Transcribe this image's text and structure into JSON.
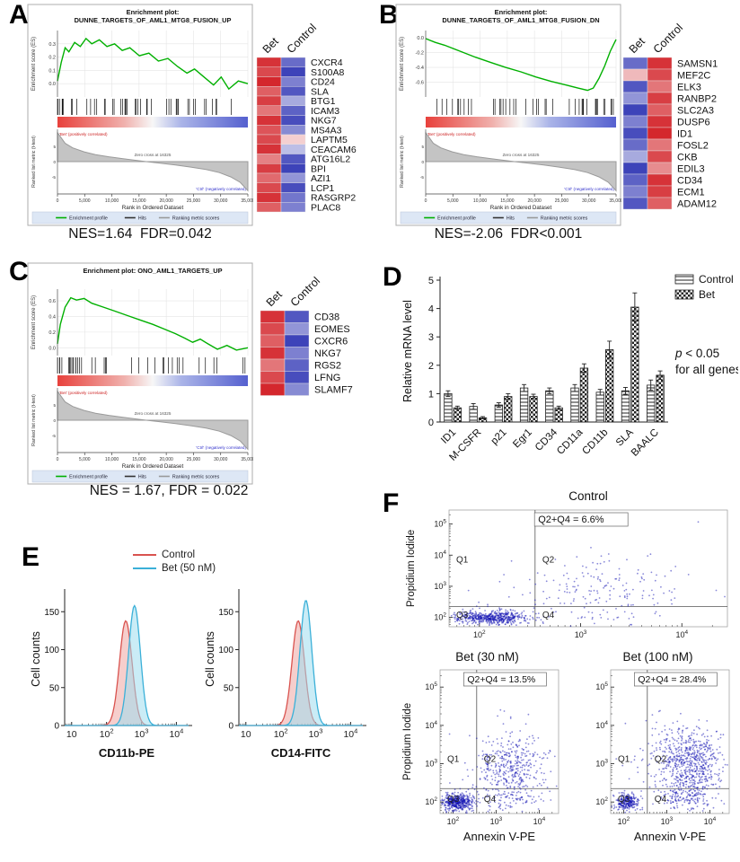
{
  "panels": {
    "A": "A",
    "B": "B",
    "C": "C",
    "D": "D",
    "E": "E",
    "F": "F"
  },
  "stats": {
    "A": "NES=1.64  FDR=0.042",
    "B": "NES=-2.06  FDR<0.001",
    "C": "NES = 1.67, FDR = 0.022"
  },
  "gsea_common": {
    "legend": [
      "Enrichment profile",
      "Hits",
      "Ranking metric scores"
    ],
    "legend_colors": [
      "#00b000",
      "#333333",
      "#999999"
    ],
    "xlabel": "Rank in Ordered Dataset",
    "ylabel_es": "Enrichment score (ES)",
    "ylabel_rank": "Ranked list metric (t-test)",
    "zero_cross": "Zero cross at 16325",
    "pos_label": "'Bet' (positively correlated)",
    "neg_label": "'Ctrl' (negatively correlated)",
    "x_ticks": [
      "0",
      "5,000",
      "10,000",
      "15,000",
      "20,000",
      "25,000",
      "30,000",
      "35,000"
    ],
    "rank_ticks": [
      [
        0.5,
        "5"
      ],
      [
        0,
        "0"
      ],
      [
        -0.5,
        "-5"
      ]
    ],
    "rank_curve": [
      [
        0,
        0.95
      ],
      [
        0.04,
        0.6
      ],
      [
        0.08,
        0.45
      ],
      [
        0.14,
        0.32
      ],
      [
        0.2,
        0.23
      ],
      [
        0.27,
        0.16
      ],
      [
        0.34,
        0.1
      ],
      [
        0.4,
        0.05
      ],
      [
        0.466,
        0
      ],
      [
        0.54,
        -0.05
      ],
      [
        0.62,
        -0.11
      ],
      [
        0.7,
        -0.18
      ],
      [
        0.78,
        -0.26
      ],
      [
        0.85,
        -0.36
      ],
      [
        0.91,
        -0.5
      ],
      [
        0.96,
        -0.68
      ],
      [
        1,
        -0.95
      ]
    ]
  },
  "chart_data": [
    {
      "id": "gsea_A",
      "type": "line",
      "subtype": "gsea",
      "title_lines": [
        "Enrichment plot:",
        "DUNNE_TARGETS_OF_AML1_MTG8_FUSION_UP"
      ],
      "es_ticks": [
        "0.3",
        "0.2",
        "0.1",
        "0.0"
      ],
      "es_range": [
        -0.1,
        0.4
      ],
      "curve": [
        [
          0,
          0.02
        ],
        [
          0.02,
          0.16
        ],
        [
          0.04,
          0.27
        ],
        [
          0.06,
          0.24
        ],
        [
          0.09,
          0.31
        ],
        [
          0.12,
          0.28
        ],
        [
          0.15,
          0.34
        ],
        [
          0.18,
          0.3
        ],
        [
          0.22,
          0.33
        ],
        [
          0.26,
          0.28
        ],
        [
          0.3,
          0.3
        ],
        [
          0.34,
          0.25
        ],
        [
          0.38,
          0.27
        ],
        [
          0.43,
          0.21
        ],
        [
          0.48,
          0.23
        ],
        [
          0.53,
          0.17
        ],
        [
          0.58,
          0.19
        ],
        [
          0.63,
          0.13
        ],
        [
          0.68,
          0.08
        ],
        [
          0.72,
          0.11
        ],
        [
          0.77,
          0.05
        ],
        [
          0.82,
          -0.01
        ],
        [
          0.86,
          0.05
        ],
        [
          0.9,
          -0.04
        ],
        [
          0.95,
          0.02
        ],
        [
          1,
          0
        ]
      ],
      "hits": {
        "seed": 3,
        "n": 48,
        "bias": 1.4,
        "side": "left"
      }
    },
    {
      "id": "hm_A",
      "type": "heatmap",
      "cols": [
        "Bet",
        "Control"
      ],
      "genes": [
        "CXCR4",
        "S100A8",
        "CD24",
        "SLA",
        "BTG1",
        "ICAM3",
        "NKG7",
        "MS4A3",
        "LAPTM5",
        "CEACAM6",
        "ATG16L2",
        "BPI",
        "AZI1",
        "LCP1",
        "RASGRP2",
        "PLAC8"
      ],
      "values": [
        [
          0.9,
          -0.7
        ],
        [
          0.8,
          -0.9
        ],
        [
          0.95,
          -0.6
        ],
        [
          0.7,
          -0.8
        ],
        [
          0.85,
          -0.4
        ],
        [
          0.6,
          -0.75
        ],
        [
          0.9,
          -0.85
        ],
        [
          0.75,
          -0.55
        ],
        [
          0.8,
          0.2
        ],
        [
          0.9,
          -0.3
        ],
        [
          0.55,
          -0.8
        ],
        [
          0.85,
          -0.9
        ],
        [
          0.65,
          -0.5
        ],
        [
          0.8,
          -0.85
        ],
        [
          0.9,
          -0.65
        ],
        [
          0.7,
          -0.6
        ]
      ]
    },
    {
      "id": "gsea_B",
      "type": "line",
      "subtype": "gsea",
      "title_lines": [
        "Enrichment plot:",
        "DUNNE_TARGETS_OF_AML1_MTG8_FUSION_DN"
      ],
      "es_ticks": [
        "0.0",
        "-0.2",
        "-0.4",
        "-0.6"
      ],
      "es_range": [
        -0.8,
        0.1
      ],
      "curve": [
        [
          0,
          -0.01
        ],
        [
          0.05,
          -0.06
        ],
        [
          0.1,
          -0.1
        ],
        [
          0.18,
          -0.18
        ],
        [
          0.26,
          -0.26
        ],
        [
          0.34,
          -0.33
        ],
        [
          0.42,
          -0.4
        ],
        [
          0.5,
          -0.46
        ],
        [
          0.58,
          -0.53
        ],
        [
          0.66,
          -0.59
        ],
        [
          0.74,
          -0.64
        ],
        [
          0.8,
          -0.68
        ],
        [
          0.85,
          -0.71
        ],
        [
          0.88,
          -0.68
        ],
        [
          0.91,
          -0.55
        ],
        [
          0.94,
          -0.38
        ],
        [
          0.97,
          -0.18
        ],
        [
          1,
          -0.02
        ]
      ],
      "hits": {
        "seed": 9,
        "n": 42,
        "bias": 1.4,
        "side": "right"
      }
    },
    {
      "id": "hm_B",
      "type": "heatmap",
      "cols": [
        "Bet",
        "Control"
      ],
      "genes": [
        "SAMSN1",
        "MEF2C",
        "ELK3",
        "RANBP2",
        "SLC2A3",
        "DUSP6",
        "ID1",
        "FOSL2",
        "CKB",
        "EDIL3",
        "CD34",
        "ECM1",
        "ADAM12"
      ],
      "values": [
        [
          -0.7,
          0.9
        ],
        [
          0.3,
          0.8
        ],
        [
          -0.8,
          0.6
        ],
        [
          -0.5,
          0.85
        ],
        [
          -0.9,
          0.7
        ],
        [
          -0.6,
          0.9
        ],
        [
          -0.85,
          0.95
        ],
        [
          -0.7,
          0.6
        ],
        [
          -0.4,
          0.8
        ],
        [
          -0.9,
          0.5
        ],
        [
          -0.75,
          0.9
        ],
        [
          -0.6,
          0.85
        ],
        [
          -0.8,
          0.7
        ]
      ]
    },
    {
      "id": "gsea_C",
      "type": "line",
      "subtype": "gsea",
      "title_lines": [
        "Enrichment plot: ONO_AML1_TARGETS_UP",
        ""
      ],
      "es_ticks": [
        "0.6",
        "0.4",
        "0.2",
        "0.0"
      ],
      "es_range": [
        -0.1,
        0.75
      ],
      "curve": [
        [
          0,
          0.05
        ],
        [
          0.015,
          0.3
        ],
        [
          0.04,
          0.52
        ],
        [
          0.07,
          0.64
        ],
        [
          0.1,
          0.61
        ],
        [
          0.14,
          0.63
        ],
        [
          0.18,
          0.57
        ],
        [
          0.24,
          0.52
        ],
        [
          0.3,
          0.47
        ],
        [
          0.37,
          0.41
        ],
        [
          0.44,
          0.35
        ],
        [
          0.5,
          0.3
        ],
        [
          0.56,
          0.24
        ],
        [
          0.62,
          0.18
        ],
        [
          0.67,
          0.12
        ],
        [
          0.71,
          0.07
        ],
        [
          0.75,
          0.11
        ],
        [
          0.79,
          0.05
        ],
        [
          0.84,
          -0.02
        ],
        [
          0.89,
          0.03
        ],
        [
          0.94,
          -0.03
        ],
        [
          1,
          0
        ]
      ],
      "hits": {
        "seed": 5,
        "n": 38,
        "bias": 1.8,
        "side": "left"
      }
    },
    {
      "id": "hm_C",
      "type": "heatmap",
      "cols": [
        "Bet",
        "Control"
      ],
      "genes": [
        "CD38",
        "EOMES",
        "CXCR6",
        "NKG7",
        "RGS2",
        "LFNG",
        "SLAMF7"
      ],
      "values": [
        [
          0.9,
          -0.8
        ],
        [
          0.8,
          -0.5
        ],
        [
          0.7,
          -0.9
        ],
        [
          0.9,
          -0.6
        ],
        [
          0.6,
          -0.75
        ],
        [
          0.8,
          -0.85
        ],
        [
          0.95,
          -0.55
        ]
      ]
    },
    {
      "id": "bars_D",
      "type": "bar",
      "ylabel": "Relative mRNA level",
      "ylim": [
        0,
        5
      ],
      "yticks": [
        0,
        1,
        2,
        3,
        4,
        5
      ],
      "categories": [
        "ID1",
        "M-CSFR",
        "p21",
        "Egr1",
        "CD34",
        "CD11a",
        "CD11b",
        "SLA",
        "BAALC"
      ],
      "series": [
        {
          "name": "Control",
          "pattern": "lines",
          "values": [
            1.0,
            0.55,
            0.6,
            1.2,
            1.1,
            1.2,
            1.05,
            1.1,
            1.3
          ],
          "errors": [
            0.1,
            0.1,
            0.08,
            0.12,
            0.1,
            0.12,
            0.1,
            0.12,
            0.18
          ]
        },
        {
          "name": "Bet",
          "pattern": "checker",
          "values": [
            0.5,
            0.15,
            0.9,
            0.9,
            0.5,
            1.9,
            2.55,
            4.05,
            1.65
          ],
          "errors": [
            0.06,
            0.04,
            0.1,
            0.08,
            0.06,
            0.15,
            0.3,
            0.5,
            0.15
          ]
        }
      ],
      "note_lines": [
        "p < 0.05",
        "for all genes"
      ]
    },
    {
      "id": "hist_E1",
      "type": "area",
      "xlabel": "CD11b-PE",
      "ylabel": "Cell counts",
      "yticks": [
        0,
        50,
        100,
        150
      ],
      "xlog_range": [
        0.8,
        4.35
      ],
      "series": [
        {
          "name": "Control",
          "color": "#d9534f",
          "fill": "#eea6a3",
          "peak": 138,
          "center": 2.55,
          "sigma": 0.18
        },
        {
          "name": "Bet (50 nM)",
          "color": "#3bb0d8",
          "fill": "#9fdcef",
          "peak": 158,
          "center": 2.8,
          "sigma": 0.17
        }
      ]
    },
    {
      "id": "hist_E2",
      "type": "area",
      "xlabel": "CD14-FITC",
      "ylabel": "Cell counts",
      "yticks": [
        0,
        50,
        100,
        150
      ],
      "xlog_range": [
        0.8,
        4.35
      ],
      "series": [
        {
          "name": "Control",
          "color": "#d9534f",
          "fill": "#eea6a3",
          "peak": 138,
          "center": 2.5,
          "sigma": 0.18
        },
        {
          "name": "Bet (50 nM)",
          "color": "#3bb0d8",
          "fill": "#9fdcef",
          "peak": 165,
          "center": 2.72,
          "sigma": 0.17
        }
      ]
    },
    {
      "id": "sc_control",
      "type": "scatter",
      "title": "Control",
      "ylabel": "Propidium Iodide",
      "xlabel": "",
      "quad_label": "Q2+Q4 = 6.6%",
      "quads": [
        "Q1",
        "Q2",
        "Q3",
        "Q4"
      ],
      "xq": 2.55,
      "yq": 2.35,
      "xlog_range": [
        1.7,
        4.45
      ],
      "ylog_range": [
        1.7,
        5.45
      ],
      "x_decades": [
        2,
        3,
        4
      ],
      "y_decades": [
        2,
        3,
        4,
        5
      ],
      "seed": 7,
      "clusters": [
        {
          "n": 550,
          "cx": 2.12,
          "cy": 2.0,
          "sx": 0.17,
          "sy": 0.11
        },
        {
          "n": 130,
          "cx": 3.25,
          "cy": 3.05,
          "sx": 0.38,
          "sy": 0.42
        },
        {
          "n": 25,
          "cx": 3.2,
          "cy": 2.1,
          "sx": 0.35,
          "sy": 0.12
        },
        {
          "n": 45,
          "cx": 2.9,
          "cy": 2.7,
          "sx": 0.7,
          "sy": 0.7
        }
      ]
    },
    {
      "id": "sc_bet30",
      "type": "scatter",
      "title": "Bet (30 nM)",
      "ylabel": "Propidium Iodide",
      "xlabel": "Annexin V-PE",
      "quad_label": "Q2+Q4 = 13.5%",
      "quads": [
        "Q1",
        "Q2",
        "Q3",
        "Q4"
      ],
      "xq": 2.55,
      "yq": 2.35,
      "xlog_range": [
        1.7,
        4.45
      ],
      "ylog_range": [
        1.7,
        5.45
      ],
      "x_decades": [
        2,
        3,
        4
      ],
      "y_decades": [
        2,
        3,
        4,
        5
      ],
      "seed": 11,
      "clusters": [
        {
          "n": 450,
          "cx": 2.1,
          "cy": 2.0,
          "sx": 0.17,
          "sy": 0.11
        },
        {
          "n": 380,
          "cx": 3.35,
          "cy": 2.95,
          "sx": 0.4,
          "sy": 0.45
        },
        {
          "n": 60,
          "cx": 3.3,
          "cy": 2.1,
          "sx": 0.4,
          "sy": 0.12
        },
        {
          "n": 60,
          "cx": 2.9,
          "cy": 2.7,
          "sx": 0.7,
          "sy": 0.7
        }
      ]
    },
    {
      "id": "sc_bet100",
      "type": "scatter",
      "title": "Bet (100 nM)",
      "ylabel": "",
      "xlabel": "Annexin V-PE",
      "quad_label": "Q2+Q4 = 28.4%",
      "quads": [
        "Q1",
        "Q2",
        "Q3",
        "Q4"
      ],
      "xq": 2.55,
      "yq": 2.35,
      "xlog_range": [
        1.7,
        4.45
      ],
      "ylog_range": [
        1.7,
        5.45
      ],
      "x_decades": [
        2,
        3,
        4
      ],
      "y_decades": [
        2,
        3,
        4,
        5
      ],
      "seed": 13,
      "clusters": [
        {
          "n": 260,
          "cx": 2.05,
          "cy": 2.0,
          "sx": 0.15,
          "sy": 0.11
        },
        {
          "n": 700,
          "cx": 3.55,
          "cy": 2.95,
          "sx": 0.38,
          "sy": 0.5
        },
        {
          "n": 90,
          "cx": 3.5,
          "cy": 2.1,
          "sx": 0.35,
          "sy": 0.12
        },
        {
          "n": 70,
          "cx": 3.0,
          "cy": 2.8,
          "sx": 0.7,
          "sy": 0.7
        }
      ]
    }
  ]
}
